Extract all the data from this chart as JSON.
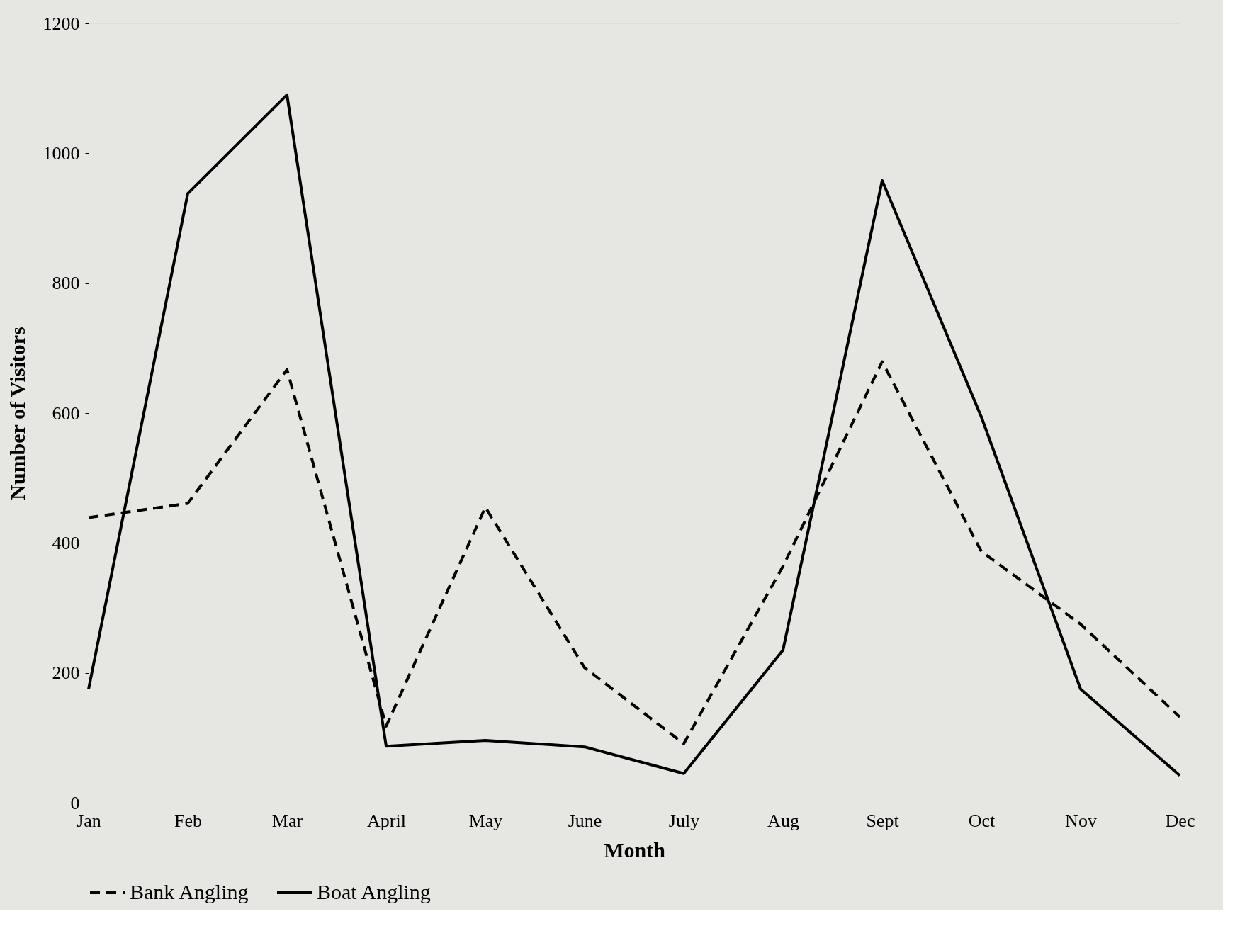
{
  "chart_data": {
    "type": "line",
    "xlabel": "Month",
    "ylabel": "Number of Visitors",
    "categories": [
      "Jan",
      "Feb",
      "Mar",
      "April",
      "May",
      "June",
      "July",
      "Aug",
      "Sept",
      "Oct",
      "Nov",
      "Dec"
    ],
    "series": [
      {
        "name": "Bank Angling",
        "color": "#000000",
        "line_style": "dashed",
        "values": [
          439,
          461,
          667,
          118,
          455,
          208,
          91,
          364,
          679,
          387,
          275,
          132
        ]
      },
      {
        "name": "Boat Angling",
        "color": "#000000",
        "line_style": "solid",
        "values": [
          175,
          938,
          1090,
          87,
          96,
          86,
          45,
          235,
          958,
          594,
          175,
          42
        ]
      }
    ],
    "ylim": [
      0,
      1200
    ],
    "yticks": [
      0,
      200,
      400,
      600,
      800,
      1000,
      1200
    ],
    "grid": false,
    "legend": "bottom",
    "marker": "none"
  }
}
